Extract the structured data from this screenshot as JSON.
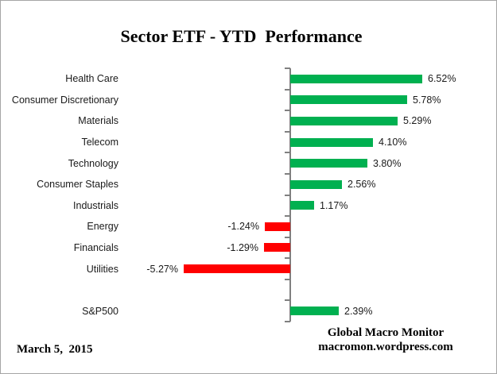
{
  "title": "Sector ETF - YTD  Performance",
  "footer": {
    "date": "March 5,  2015",
    "source_line1": "Global Macro Monitor",
    "source_line2": "macromon.wordpress.com"
  },
  "colors": {
    "positive_bar": "#00B050",
    "negative_bar": "#FF0000",
    "axis": "#808080",
    "text": "#000000"
  },
  "chart_data": {
    "type": "bar",
    "orientation": "horizontal",
    "title": "Sector ETF - YTD  Performance",
    "categories": [
      "Health Care",
      "Consumer Discretionary",
      "Materials",
      "Telecom",
      "Technology",
      "Consumer Staples",
      "Industrials",
      "Energy",
      "Financials",
      "Utilities",
      "",
      "S&P500"
    ],
    "values": [
      6.52,
      5.78,
      5.29,
      4.1,
      3.8,
      2.56,
      1.17,
      -1.24,
      -1.29,
      -5.27,
      null,
      2.39
    ],
    "value_labels": [
      "6.52%",
      "5.78%",
      "5.29%",
      "4.10%",
      "3.80%",
      "2.56%",
      "1.17%",
      "-1.24%",
      "-1.29%",
      "-5.27%",
      "",
      "2.39%"
    ],
    "xlabel": "",
    "ylabel": "",
    "xlim": [
      -6,
      7
    ],
    "gridlines": false,
    "legend": false,
    "value_labels_shown": true,
    "bar_color_rule": "positive=green, negative=red"
  }
}
